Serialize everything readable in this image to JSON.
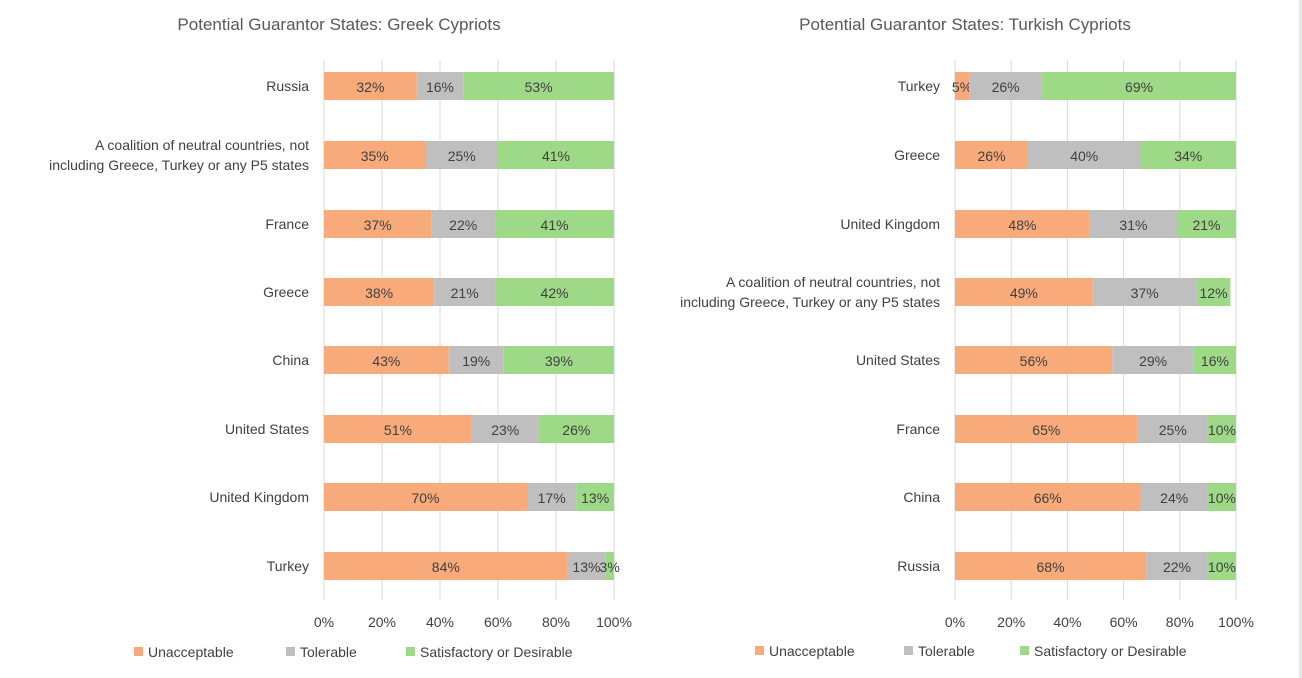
{
  "colors": {
    "Unacceptable": "#f8aa7a",
    "Tolerable": "#bfbfbf",
    "Satisfactory or Desirable": "#9dd986",
    "grid": "#d9d9d9"
  },
  "chart_data": [
    {
      "type": "bar",
      "orientation": "horizontal",
      "stacked": true,
      "title": "Potential Guarantor States: Greek Cypriots",
      "xlabel": "",
      "ylabel": "",
      "xlim": [
        0,
        100
      ],
      "x_ticks": [
        "0%",
        "20%",
        "40%",
        "60%",
        "80%",
        "100%"
      ],
      "grid": true,
      "legend_position": "bottom",
      "categories": [
        "Russia",
        "A coalition of neutral countries, not\nincluding Greece, Turkey or any P5 states",
        "France",
        "Greece",
        "China",
        "United States",
        "United Kingdom",
        "Turkey"
      ],
      "series": [
        {
          "name": "Unacceptable",
          "values": [
            32,
            35,
            37,
            38,
            43,
            51,
            70,
            84
          ],
          "labels": [
            "32%",
            "35%",
            "37%",
            "38%",
            "43%",
            "51%",
            "70%",
            "84%"
          ]
        },
        {
          "name": "Tolerable",
          "values": [
            16,
            25,
            22,
            21,
            19,
            23,
            17,
            13
          ],
          "labels": [
            "16%",
            "25%",
            "22%",
            "21%",
            "19%",
            "23%",
            "17%",
            "13%"
          ]
        },
        {
          "name": "Satisfactory or Desirable",
          "values": [
            53,
            41,
            41,
            42,
            39,
            26,
            13,
            3
          ],
          "labels": [
            "53%",
            "41%",
            "41%",
            "42%",
            "39%",
            "26%",
            "13%",
            "3%"
          ]
        }
      ]
    },
    {
      "type": "bar",
      "orientation": "horizontal",
      "stacked": true,
      "title": "Potential Guarantor States: Turkish Cypriots",
      "xlabel": "",
      "ylabel": "",
      "xlim": [
        0,
        100
      ],
      "x_ticks": [
        "0%",
        "20%",
        "40%",
        "60%",
        "80%",
        "100%"
      ],
      "grid": true,
      "legend_position": "bottom",
      "categories": [
        "Turkey",
        "Greece",
        "United Kingdom",
        "A coalition of neutral countries, not\nincluding Greece, Turkey or any P5 states",
        "United States",
        "France",
        "China",
        "Russia"
      ],
      "series": [
        {
          "name": "Unacceptable",
          "values": [
            5,
            26,
            48,
            49,
            56,
            65,
            66,
            68
          ],
          "labels": [
            "5%",
            "26%",
            "48%",
            "49%",
            "56%",
            "65%",
            "66%",
            "68%"
          ]
        },
        {
          "name": "Tolerable",
          "values": [
            26,
            40,
            31,
            37,
            29,
            25,
            24,
            22
          ],
          "labels": [
            "26%",
            "40%",
            "31%",
            "37%",
            "29%",
            "25%",
            "24%",
            "22%"
          ]
        },
        {
          "name": "Satisfactory or Desirable",
          "values": [
            69,
            34,
            21,
            12,
            16,
            10,
            10,
            10
          ],
          "labels": [
            "69%",
            "34%",
            "21%",
            "12%",
            "16%",
            "10%",
            "10%",
            "10%"
          ]
        }
      ]
    }
  ]
}
